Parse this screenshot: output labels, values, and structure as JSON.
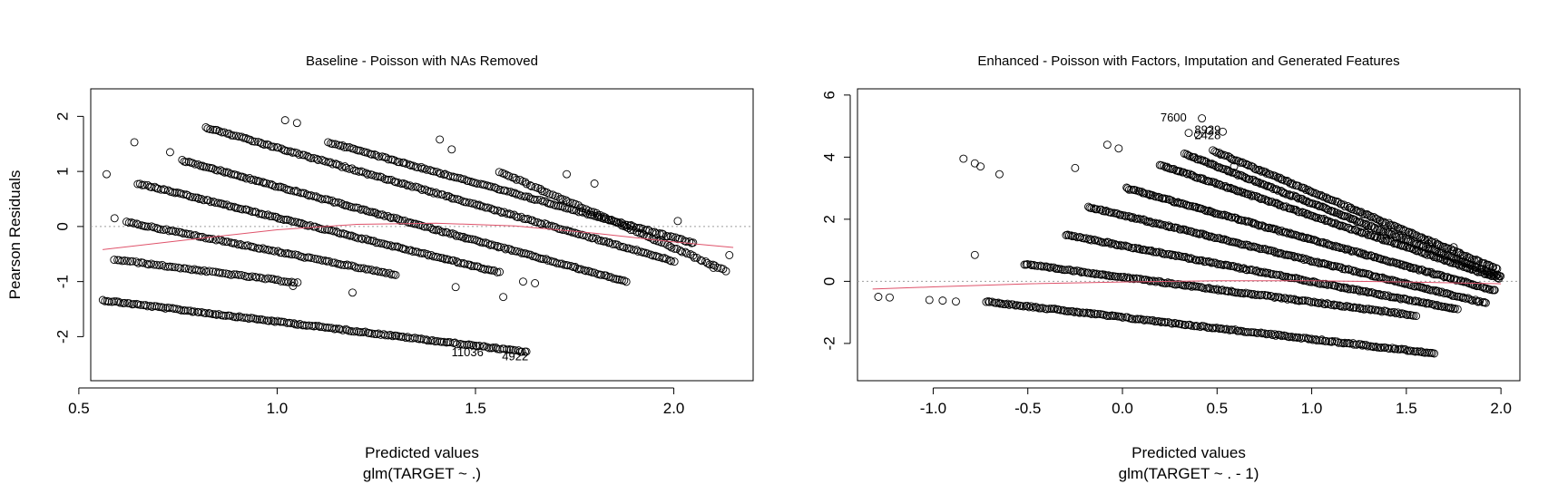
{
  "chart_data": [
    {
      "type": "scatter",
      "title": "Baseline - Poisson with NAs Removed",
      "xlabel": "Predicted values",
      "xlabel_sub": "glm(TARGET ~ .)",
      "ylabel": "Pearson Residuals",
      "xlim": [
        0.53,
        2.2
      ],
      "ylim": [
        -2.8,
        2.5
      ],
      "xticks": [
        0.5,
        1.0,
        1.5,
        2.0
      ],
      "xtick_labels": [
        "0.5",
        "1.0",
        "1.5",
        "2.0"
      ],
      "yticks": [
        -2,
        -1,
        0,
        1,
        2
      ],
      "ytick_labels": [
        "-2",
        "-1",
        "0",
        "1",
        "2"
      ],
      "zero_line": true,
      "point_bands": [
        {
          "x0": 0.56,
          "x1": 1.63,
          "y0": -1.34,
          "y1": -2.28,
          "count": 190
        },
        {
          "x0": 0.59,
          "x1": 1.05,
          "y0": -0.6,
          "y1": -1.02,
          "count": 70
        },
        {
          "x0": 0.62,
          "x1": 1.3,
          "y0": 0.08,
          "y1": -0.88,
          "count": 110
        },
        {
          "x0": 0.65,
          "x1": 1.56,
          "y0": 0.78,
          "y1": -0.83,
          "count": 160
        },
        {
          "x0": 0.76,
          "x1": 1.88,
          "y0": 1.2,
          "y1": -1.0,
          "count": 200
        },
        {
          "x0": 0.82,
          "x1": 2.0,
          "y0": 1.8,
          "y1": -0.63,
          "count": 200
        },
        {
          "x0": 1.13,
          "x1": 2.05,
          "y0": 1.53,
          "y1": -0.3,
          "count": 160
        },
        {
          "x0": 1.56,
          "x1": 2.13,
          "y0": 1.0,
          "y1": -0.8,
          "count": 90
        }
      ],
      "outliers": [
        {
          "x": 0.59,
          "y": 0.15
        },
        {
          "x": 0.57,
          "y": 0.95
        },
        {
          "x": 0.73,
          "y": 1.35
        },
        {
          "x": 0.64,
          "y": 1.53
        },
        {
          "x": 1.02,
          "y": 1.93
        },
        {
          "x": 1.05,
          "y": 1.88
        },
        {
          "x": 1.41,
          "y": 1.58
        },
        {
          "x": 1.44,
          "y": 1.4
        },
        {
          "x": 1.73,
          "y": 0.95
        },
        {
          "x": 1.8,
          "y": 0.78
        },
        {
          "x": 2.14,
          "y": -0.52
        },
        {
          "x": 2.1,
          "y": -0.75
        },
        {
          "x": 1.57,
          "y": -1.28
        },
        {
          "x": 1.45,
          "y": -1.1
        },
        {
          "x": 1.04,
          "y": -1.08
        },
        {
          "x": 1.19,
          "y": -1.2
        },
        {
          "x": 1.62,
          "y": -1.0
        },
        {
          "x": 1.65,
          "y": -1.03
        },
        {
          "x": 2.01,
          "y": 0.1
        }
      ],
      "smooth_line": {
        "color": "#df536b",
        "x": [
          0.56,
          0.8,
          1.0,
          1.2,
          1.4,
          1.6,
          1.8,
          2.0,
          2.15
        ],
        "y": [
          -0.42,
          -0.22,
          -0.06,
          0.04,
          0.06,
          0.01,
          -0.12,
          -0.28,
          -0.38
        ]
      },
      "point_labels": [
        {
          "text": "11036",
          "x": 1.48,
          "y": -2.3
        },
        {
          "text": "4922",
          "x": 1.6,
          "y": -2.37
        }
      ]
    },
    {
      "type": "scatter",
      "title": "Enhanced - Poisson with Factors, Imputation and Generated Features",
      "xlabel": "Predicted values",
      "xlabel_sub": "glm(TARGET ~ . - 1)",
      "ylabel": "",
      "xlim": [
        -1.4,
        2.1
      ],
      "ylim": [
        -3.2,
        6.2
      ],
      "xticks": [
        -1.0,
        -0.5,
        0.0,
        0.5,
        1.0,
        1.5,
        2.0
      ],
      "xtick_labels": [
        "-1.0",
        "-0.5",
        "0.0",
        "0.5",
        "1.0",
        "1.5",
        "2.0"
      ],
      "yticks": [
        -2,
        0,
        2,
        4,
        6
      ],
      "ytick_labels": [
        "-2",
        "0",
        "2",
        "4",
        "6"
      ],
      "zero_line": true,
      "point_bands": [
        {
          "x0": -0.72,
          "x1": 1.65,
          "y0": -0.65,
          "y1": -2.32,
          "count": 230
        },
        {
          "x0": -0.52,
          "x1": 1.55,
          "y0": 0.55,
          "y1": -1.1,
          "count": 200
        },
        {
          "x0": -0.3,
          "x1": 1.77,
          "y0": 1.5,
          "y1": -0.9,
          "count": 210
        },
        {
          "x0": -0.18,
          "x1": 1.92,
          "y0": 2.4,
          "y1": -0.7,
          "count": 220
        },
        {
          "x0": 0.02,
          "x1": 1.97,
          "y0": 3.0,
          "y1": -0.3,
          "count": 220
        },
        {
          "x0": 0.2,
          "x1": 1.99,
          "y0": 3.75,
          "y1": 0.1,
          "count": 200
        },
        {
          "x0": 0.33,
          "x1": 2.0,
          "y0": 4.1,
          "y1": 0.15,
          "count": 190
        },
        {
          "x0": 0.48,
          "x1": 1.98,
          "y0": 4.2,
          "y1": 0.4,
          "count": 160
        }
      ],
      "outliers": [
        {
          "x": -1.29,
          "y": -0.5
        },
        {
          "x": -1.23,
          "y": -0.52
        },
        {
          "x": -1.02,
          "y": -0.6
        },
        {
          "x": -0.95,
          "y": -0.62
        },
        {
          "x": -0.88,
          "y": -0.65
        },
        {
          "x": -0.84,
          "y": 3.95
        },
        {
          "x": -0.78,
          "y": 3.8
        },
        {
          "x": -0.75,
          "y": 3.7
        },
        {
          "x": -0.65,
          "y": 3.45
        },
        {
          "x": -0.78,
          "y": 0.85
        },
        {
          "x": -0.08,
          "y": 4.4
        },
        {
          "x": -0.02,
          "y": 4.28
        },
        {
          "x": -0.25,
          "y": 3.65
        },
        {
          "x": 0.42,
          "y": 5.25
        },
        {
          "x": 0.35,
          "y": 4.78
        },
        {
          "x": 0.4,
          "y": 4.72
        },
        {
          "x": 0.46,
          "y": 4.85
        },
        {
          "x": 0.53,
          "y": 4.82
        },
        {
          "x": 0.59,
          "y": 3.7
        },
        {
          "x": 0.57,
          "y": 3.0
        },
        {
          "x": 0.95,
          "y": 2.65
        },
        {
          "x": 1.62,
          "y": 1.2
        },
        {
          "x": 1.75,
          "y": 1.1
        }
      ],
      "smooth_line": {
        "color": "#df536b",
        "x": [
          -1.32,
          -1.0,
          -0.5,
          0.0,
          0.5,
          1.0,
          1.5,
          2.0
        ],
        "y": [
          -0.25,
          -0.18,
          -0.08,
          -0.02,
          0.02,
          0.02,
          -0.02,
          -0.08
        ]
      },
      "point_labels": [
        {
          "text": "7600",
          "x": 0.27,
          "y": 5.25
        },
        {
          "text": "8929",
          "x": 0.45,
          "y": 4.85
        },
        {
          "text": "2428",
          "x": 0.45,
          "y": 4.68
        }
      ]
    }
  ]
}
